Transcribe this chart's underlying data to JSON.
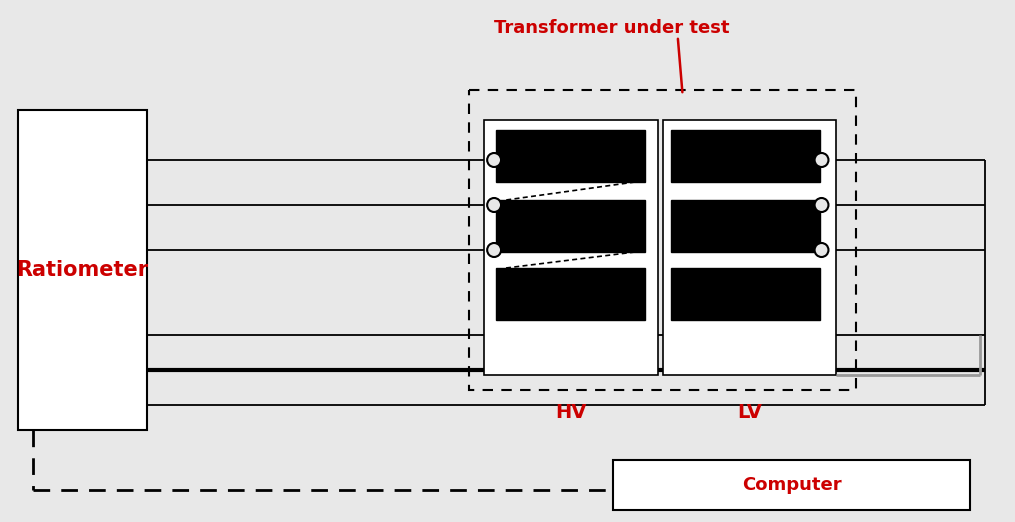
{
  "bg_color": "#e8e8e8",
  "white": "#ffffff",
  "black": "#000000",
  "red": "#cc0000",
  "gray": "#aaaaaa",
  "title_label": "Transformer under test",
  "ratiometer_label": "Ratiometer",
  "hv_label": "HV",
  "lv_label": "LV",
  "computer_label": "Computer",
  "fig_w": 10.15,
  "fig_h": 5.22,
  "dpi": 100
}
